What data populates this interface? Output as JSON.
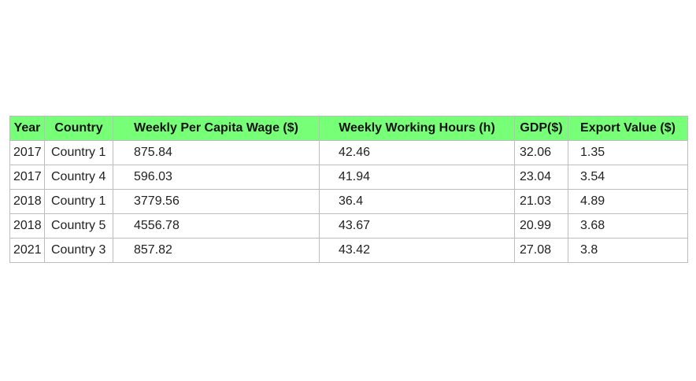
{
  "chart_data": {
    "type": "table",
    "columns": [
      "Year",
      "Country",
      "Weekly Per Capita Wage ($)",
      "Weekly Working Hours (h)",
      "GDP($)",
      "Export Value ($)"
    ],
    "rows": [
      [
        "2017",
        "Country 1",
        "875.84",
        "42.46",
        "32.06",
        "1.35"
      ],
      [
        "2017",
        "Country 4",
        "596.03",
        "41.94",
        "23.04",
        "3.54"
      ],
      [
        "2018",
        "Country 1",
        "3779.56",
        "36.4",
        "21.03",
        "4.89"
      ],
      [
        "2018",
        "Country 5",
        "4556.78",
        "43.67",
        "20.99",
        "3.68"
      ],
      [
        "2021",
        "Country 3",
        "857.82",
        "43.42",
        "27.08",
        "3.8"
      ]
    ],
    "header_color": "#77ff77",
    "border_color": "#bdbdbd"
  }
}
